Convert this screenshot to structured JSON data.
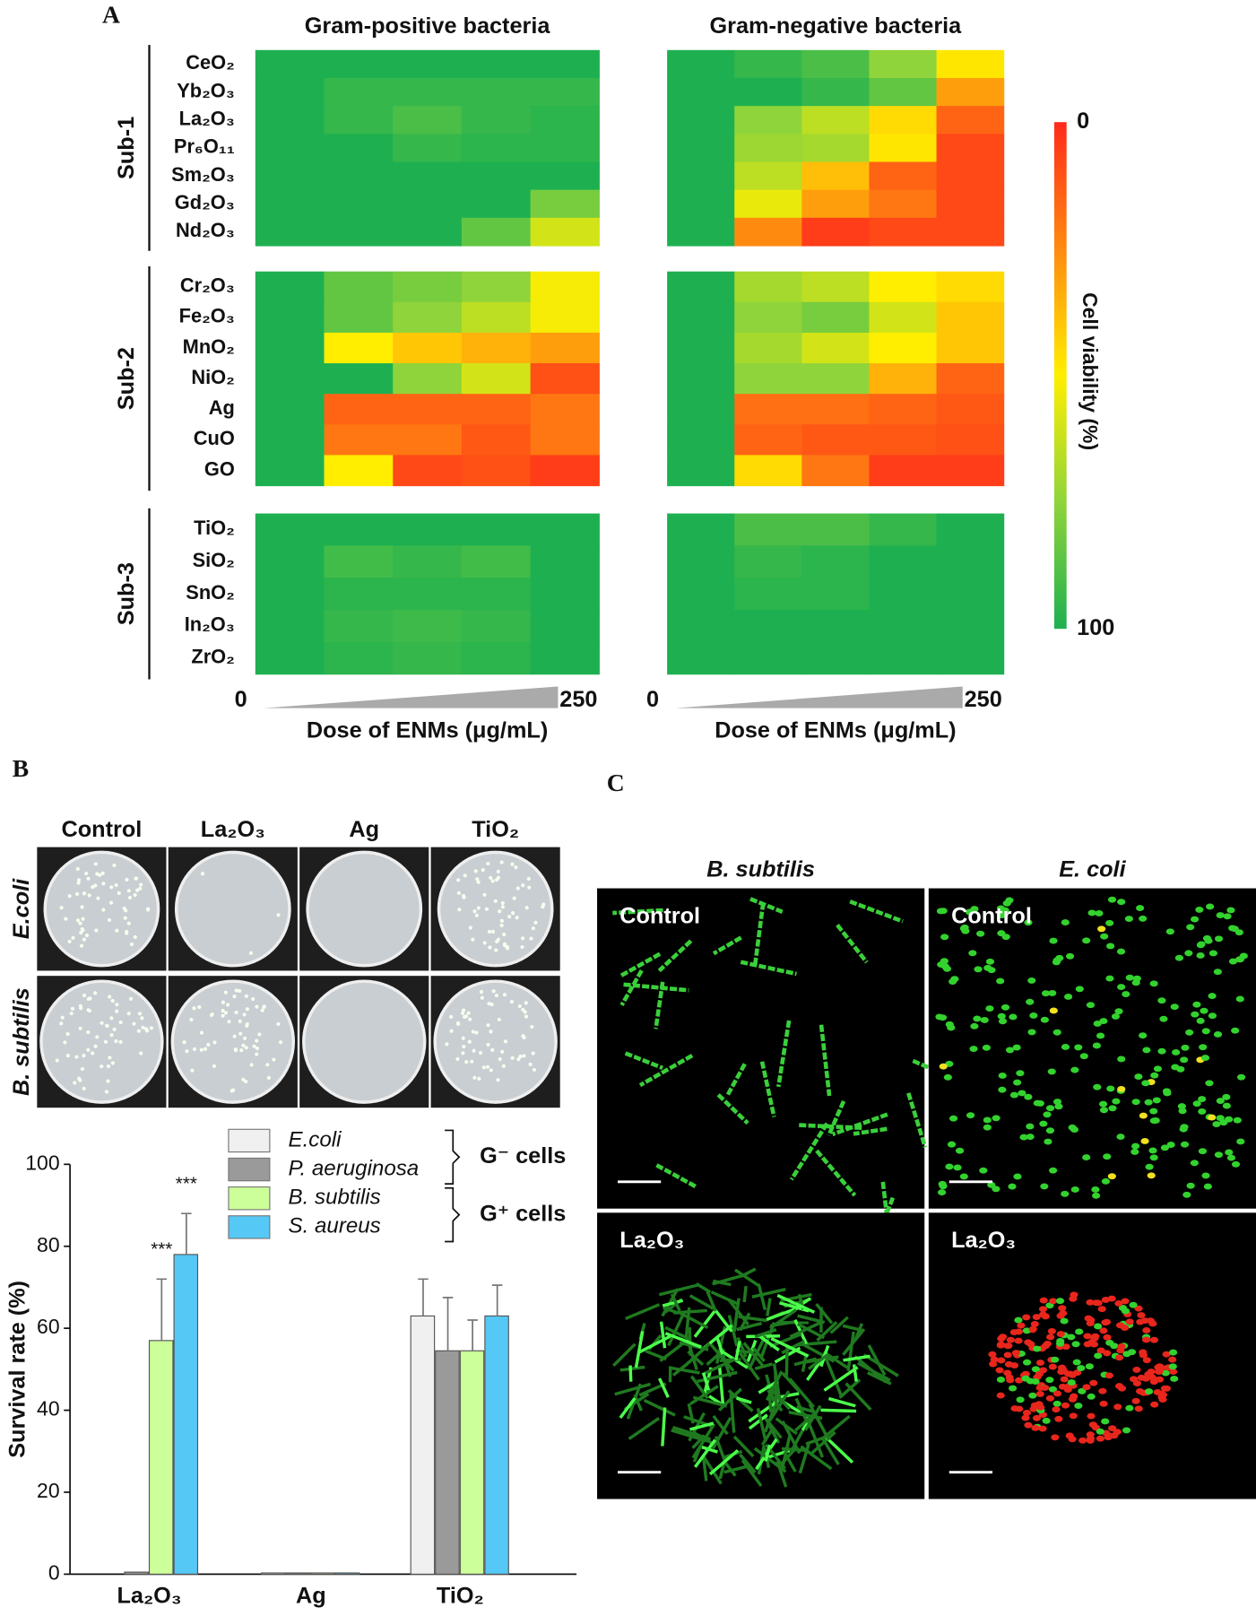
{
  "panel_labels": [
    "A",
    "B",
    "C"
  ],
  "colorbar": {
    "title": "Cell viability (%)",
    "clim": [
      0,
      100
    ],
    "ticks": [
      0,
      100
    ],
    "colors": [
      "#ff2a1a",
      "#ff8a10",
      "#ffee00",
      "#8fd43a",
      "#1eb050"
    ]
  },
  "chart_data": [
    {
      "type": "heatmap",
      "title": "Gram-positive bacteria",
      "xlabel": "Dose of ENMs (μg/mL)",
      "xlim": [
        0,
        250
      ],
      "xticks": [
        0,
        250
      ],
      "groups": [
        {
          "name": "Sub-1",
          "rows": [
            "CeO₂",
            "Yb₂O₃",
            "La₂O₃",
            "Pr₆O₁₁",
            "Sm₂O₃",
            "Gd₂O₃",
            "Nd₂O₃"
          ],
          "values": [
            [
              100,
              100,
              100,
              100,
              100
            ],
            [
              100,
              95,
              95,
              95,
              95
            ],
            [
              100,
              95,
              90,
              95,
              97
            ],
            [
              100,
              100,
              95,
              97,
              97
            ],
            [
              100,
              100,
              100,
              100,
              100
            ],
            [
              100,
              100,
              100,
              100,
              80
            ],
            [
              100,
              100,
              100,
              85,
              60
            ]
          ]
        },
        {
          "name": "Sub-2",
          "rows": [
            "Cr₂O₃",
            "Fe₂O₃",
            "MnO₂",
            "NiO₂",
            "Ag",
            "CuO",
            "GO"
          ],
          "values": [
            [
              100,
              85,
              80,
              75,
              52
            ],
            [
              100,
              85,
              75,
              65,
              52
            ],
            [
              100,
              50,
              40,
              35,
              30
            ],
            [
              100,
              100,
              75,
              60,
              10
            ],
            [
              100,
              15,
              15,
              15,
              20
            ],
            [
              100,
              20,
              20,
              12,
              20
            ],
            [
              100,
              50,
              8,
              10,
              5
            ]
          ]
        },
        {
          "name": "Sub-3",
          "rows": [
            "TiO₂",
            "SiO₂",
            "SnO₂",
            "In₂O₃",
            "ZrO₂"
          ],
          "values": [
            [
              100,
              100,
              100,
              100,
              100
            ],
            [
              100,
              92,
              95,
              92,
              100
            ],
            [
              100,
              97,
              97,
              97,
              100
            ],
            [
              100,
              95,
              93,
              95,
              100
            ],
            [
              100,
              97,
              95,
              97,
              100
            ]
          ]
        }
      ]
    },
    {
      "type": "heatmap",
      "title": "Gram-negative bacteria",
      "xlabel": "Dose of ENMs (μg/mL)",
      "xlim": [
        0,
        250
      ],
      "xticks": [
        0,
        250
      ],
      "groups": [
        {
          "values": [
            [
              100,
              95,
              90,
              75,
              48
            ],
            [
              100,
              100,
              95,
              85,
              30
            ],
            [
              100,
              75,
              65,
              45,
              15
            ],
            [
              100,
              72,
              70,
              48,
              8
            ],
            [
              100,
              65,
              38,
              15,
              8
            ],
            [
              100,
              55,
              30,
              20,
              8
            ],
            [
              100,
              25,
              5,
              8,
              8
            ]
          ]
        },
        {
          "values": [
            [
              100,
              70,
              65,
              50,
              45
            ],
            [
              100,
              75,
              80,
              60,
              40
            ],
            [
              100,
              70,
              60,
              50,
              40
            ],
            [
              100,
              75,
              75,
              35,
              15
            ],
            [
              100,
              18,
              18,
              15,
              12
            ],
            [
              100,
              15,
              12,
              12,
              10
            ],
            [
              100,
              45,
              20,
              5,
              5
            ]
          ]
        },
        {
          "values": [
            [
              100,
              90,
              90,
              95,
              100
            ],
            [
              100,
              95,
              97,
              100,
              100
            ],
            [
              100,
              97,
              97,
              100,
              100
            ],
            [
              100,
              100,
              100,
              100,
              100
            ],
            [
              100,
              100,
              100,
              100,
              100
            ]
          ]
        }
      ]
    },
    {
      "type": "bar",
      "ylabel": "Survival rate (%)",
      "categories": [
        "La₂O₃",
        "Ag",
        "TiO₂"
      ],
      "ylim": [
        0,
        100
      ],
      "yticks": [
        0,
        20,
        40,
        60,
        80,
        100
      ],
      "series": [
        {
          "name": "E.coli",
          "color": "#f0f0f0",
          "values": [
            0,
            0.3,
            63
          ],
          "errors": [
            0,
            0,
            9
          ]
        },
        {
          "name": "P. aeruginosa",
          "color": "#9a9a9a",
          "values": [
            0.5,
            0.3,
            54.5
          ],
          "errors": [
            0,
            0,
            13
          ]
        },
        {
          "name": "B. subtilis",
          "color": "#ccff99",
          "values": [
            57,
            0.3,
            54.5
          ],
          "errors": [
            15,
            0,
            7.5
          ]
        },
        {
          "name": "S. aureus",
          "color": "#55c8f5",
          "values": [
            78,
            0.3,
            63
          ],
          "errors": [
            10,
            0,
            7.5
          ]
        }
      ],
      "legend_groups": [
        "G⁻ cells",
        "G⁺ cells"
      ],
      "annotations": [
        "***",
        "***"
      ]
    }
  ],
  "plates": {
    "columns": [
      "Control",
      "La₂O₃",
      "Ag",
      "TiO₂"
    ],
    "rows": [
      "E.coli",
      "B. subtilis"
    ]
  },
  "microscopy": {
    "columns": [
      "B. subtilis",
      "E. coli"
    ],
    "rows": [
      "Control",
      "La₂O₃"
    ]
  }
}
